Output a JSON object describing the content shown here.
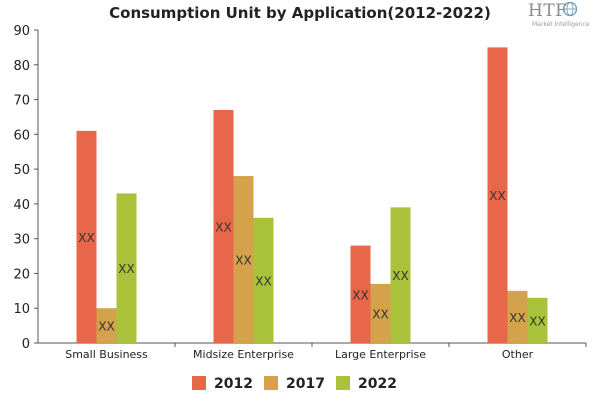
{
  "title": "Consumption Unit by  Application(2012-2022)",
  "logo": {
    "mark": "HTF",
    "sub": "Market Intelligence"
  },
  "colors": {
    "s2012": "#e8674a",
    "s2017": "#d4a24a",
    "s2022": "#a9c239"
  },
  "chart_data": {
    "type": "bar",
    "title": "Consumption Unit by  Application(2012-2022)",
    "categories": [
      "Small Business",
      "Midsize Enterprise",
      "Large Enterprise",
      "Other"
    ],
    "series": [
      {
        "name": "2012",
        "values": [
          61,
          67,
          28,
          85
        ],
        "color": "#e8674a"
      },
      {
        "name": "2017",
        "values": [
          10,
          48,
          17,
          15
        ],
        "color": "#d4a24a"
      },
      {
        "name": "2022",
        "values": [
          43,
          36,
          39,
          13
        ],
        "color": "#a9c239"
      }
    ],
    "data_label": "XX",
    "ylim": [
      0,
      90
    ],
    "yticks": [
      "0",
      "10",
      "20",
      "30",
      "40",
      "50",
      "60",
      "70",
      "80",
      "90"
    ],
    "xlabel": "",
    "ylabel": "",
    "grid": false,
    "legend": "bottom"
  }
}
